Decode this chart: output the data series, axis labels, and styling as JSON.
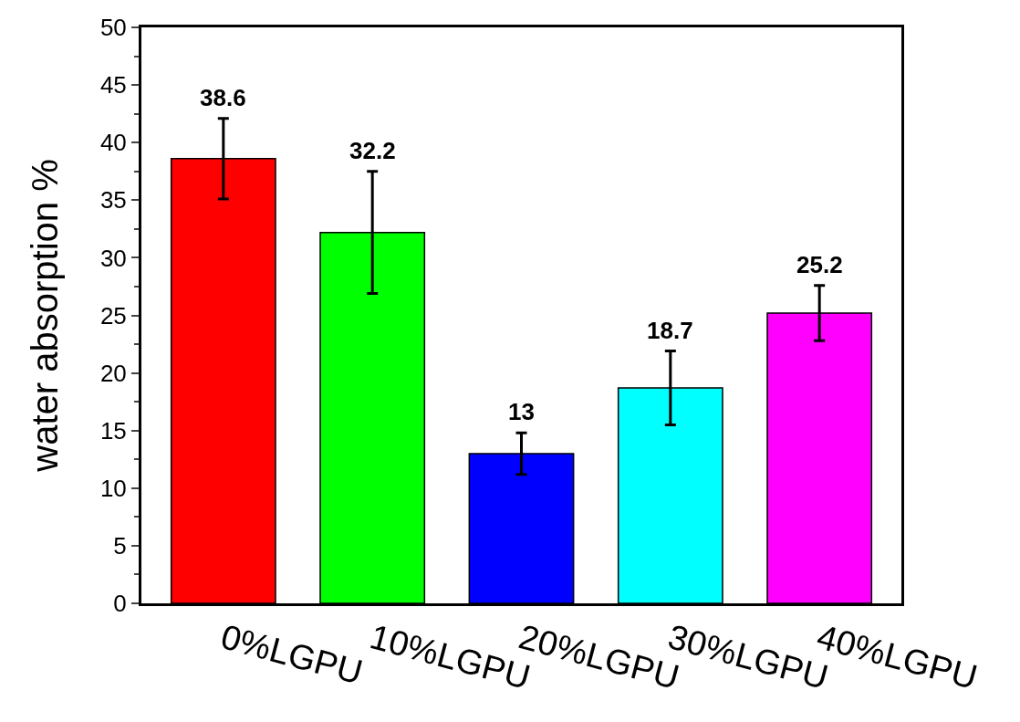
{
  "chart_data": {
    "type": "bar",
    "ylabel": "water absorption %",
    "categories": [
      "0%LGPU",
      "10%LGPU",
      "20%LGPU",
      "30%LGPU",
      "40%LGPU"
    ],
    "values": [
      38.6,
      32.2,
      13,
      18.7,
      25.2
    ],
    "colors": [
      "#ff0000",
      "#00ff00",
      "#0000ff",
      "#00ffff",
      "#ff00ff"
    ],
    "errors": [
      3.5,
      5.3,
      1.8,
      3.2,
      2.4
    ],
    "data_labels": true,
    "ylim": [
      0,
      50
    ],
    "yticks": [
      0,
      5,
      10,
      15,
      20,
      25,
      30,
      35,
      40,
      45,
      50
    ],
    "grid": false,
    "legend": false
  }
}
